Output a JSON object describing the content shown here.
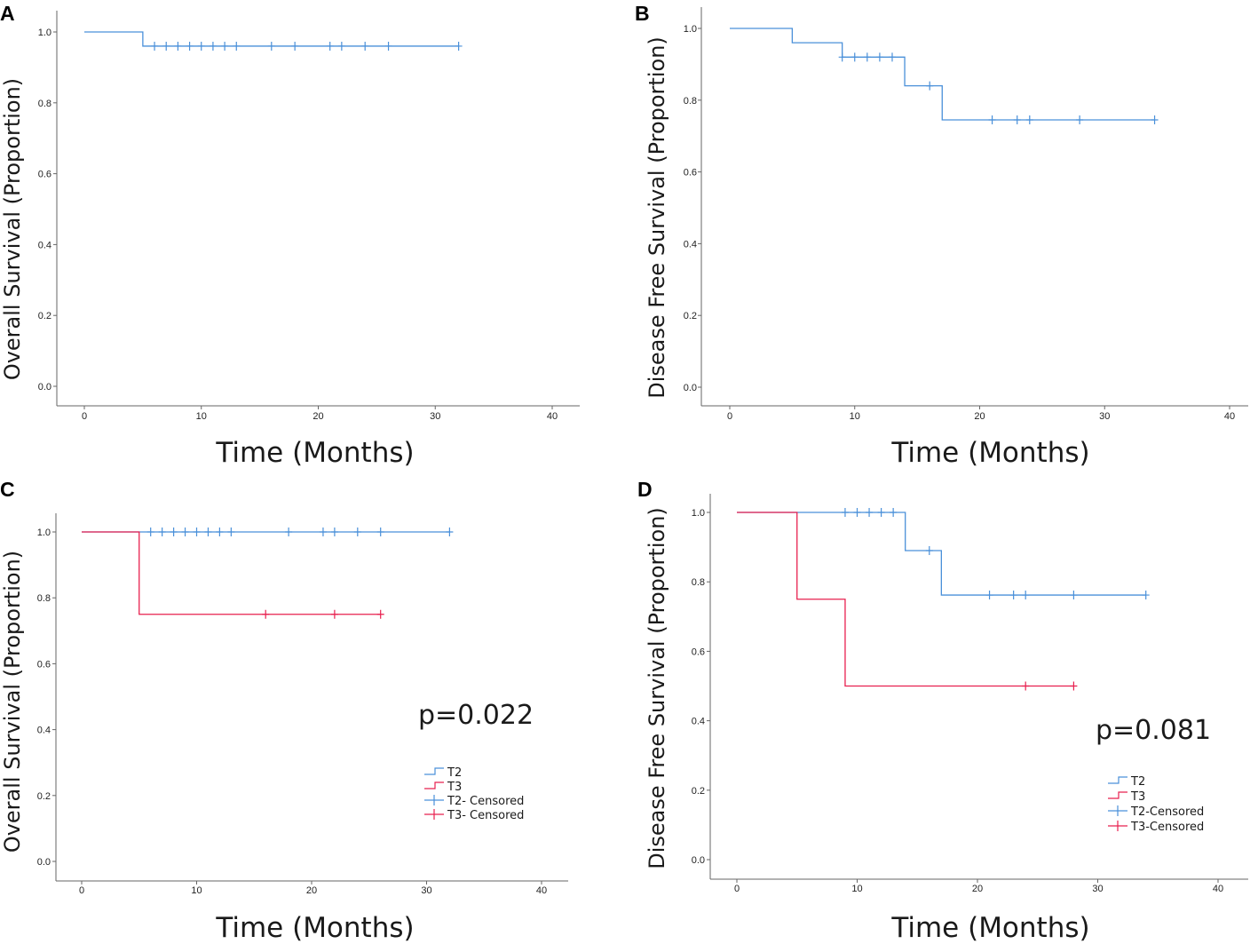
{
  "colors": {
    "T2": "#4a90d9",
    "T3": "#e8204f"
  },
  "chart_data": [
    {
      "panel": "A",
      "type": "line",
      "xlabel": "Time (Months)",
      "ylabel": "Overall Survival (Proportion)",
      "xlim": [
        0,
        40
      ],
      "ylim": [
        0,
        1.0
      ],
      "xticks": [
        0,
        10,
        20,
        30,
        40
      ],
      "yticks": [
        "0.0",
        "0.2",
        "0.4",
        "0.6",
        "0.8",
        "1.0"
      ],
      "series": [
        {
          "name": "T2",
          "color_key": "T2",
          "steps": [
            [
              0,
              1.0
            ],
            [
              5,
              0.96
            ],
            [
              32,
              0.96
            ]
          ],
          "censored": [
            6,
            7,
            8,
            9,
            10,
            11,
            12,
            13,
            16,
            18,
            21,
            22,
            24,
            26,
            32
          ],
          "censored_y": 0.96
        }
      ]
    },
    {
      "panel": "B",
      "type": "line",
      "xlabel": "Time (Months)",
      "ylabel": "Disease Free Survival (Proportion)",
      "xlim": [
        0,
        40
      ],
      "ylim": [
        0,
        1.0
      ],
      "xticks": [
        0,
        10,
        20,
        30,
        40
      ],
      "yticks": [
        "0.0",
        "0.2",
        "0.4",
        "0.6",
        "0.8",
        "1.0"
      ],
      "series": [
        {
          "name": "T2",
          "color_key": "T2",
          "steps": [
            [
              0,
              1.0
            ],
            [
              5,
              0.96
            ],
            [
              9,
              0.92
            ],
            [
              14,
              0.84
            ],
            [
              17,
              0.745
            ],
            [
              34,
              0.745
            ]
          ],
          "censored_points": [
            [
              9,
              0.92
            ],
            [
              10,
              0.92
            ],
            [
              11,
              0.92
            ],
            [
              12,
              0.92
            ],
            [
              13,
              0.92
            ],
            [
              16,
              0.84
            ],
            [
              21,
              0.745
            ],
            [
              23,
              0.745
            ],
            [
              24,
              0.745
            ],
            [
              28,
              0.745
            ],
            [
              34,
              0.745
            ]
          ]
        }
      ]
    },
    {
      "panel": "C",
      "type": "line",
      "xlabel": "Time (Months)",
      "ylabel": "Overall Survival (Proportion)",
      "xlim": [
        0,
        40
      ],
      "ylim": [
        0,
        1.0
      ],
      "xticks": [
        0,
        10,
        20,
        30,
        40
      ],
      "yticks": [
        "0.0",
        "0.2",
        "0.4",
        "0.6",
        "0.8",
        "1.0"
      ],
      "annotation": "p=0.022",
      "legend": [
        "T2",
        "T3",
        "T2- Censored",
        "T3- Censored"
      ],
      "series": [
        {
          "name": "T2",
          "color_key": "T2",
          "steps": [
            [
              0,
              1.0
            ],
            [
              32,
              1.0
            ]
          ],
          "censored_points": [
            [
              6,
              1.0
            ],
            [
              7,
              1.0
            ],
            [
              8,
              1.0
            ],
            [
              9,
              1.0
            ],
            [
              10,
              1.0
            ],
            [
              11,
              1.0
            ],
            [
              12,
              1.0
            ],
            [
              13,
              1.0
            ],
            [
              18,
              1.0
            ],
            [
              21,
              1.0
            ],
            [
              22,
              1.0
            ],
            [
              24,
              1.0
            ],
            [
              26,
              1.0
            ],
            [
              32,
              1.0
            ]
          ]
        },
        {
          "name": "T3",
          "color_key": "T3",
          "steps": [
            [
              0,
              1.0
            ],
            [
              5,
              0.75
            ],
            [
              26,
              0.75
            ]
          ],
          "censored_points": [
            [
              16,
              0.75
            ],
            [
              22,
              0.75
            ],
            [
              26,
              0.75
            ]
          ]
        }
      ]
    },
    {
      "panel": "D",
      "type": "line",
      "xlabel": "Time (Months)",
      "ylabel": "Disease Free Survival (Proportion)",
      "xlim": [
        0,
        40
      ],
      "ylim": [
        0,
        1.0
      ],
      "xticks": [
        0,
        10,
        20,
        30,
        40
      ],
      "yticks": [
        "0.0",
        "0.2",
        "0.4",
        "0.6",
        "0.8",
        "1.0"
      ],
      "annotation": "p=0.081",
      "legend": [
        "T2",
        "T3",
        "T2-Censored",
        "T3-Censored"
      ],
      "series": [
        {
          "name": "T2",
          "color_key": "T2",
          "steps": [
            [
              0,
              1.0
            ],
            [
              14,
              0.89
            ],
            [
              17,
              0.762
            ],
            [
              34,
              0.762
            ]
          ],
          "censored_points": [
            [
              9,
              1.0
            ],
            [
              10,
              1.0
            ],
            [
              11,
              1.0
            ],
            [
              12,
              1.0
            ],
            [
              13,
              1.0
            ],
            [
              16,
              0.89
            ],
            [
              21,
              0.762
            ],
            [
              23,
              0.762
            ],
            [
              24,
              0.762
            ],
            [
              28,
              0.762
            ],
            [
              34,
              0.762
            ]
          ]
        },
        {
          "name": "T3",
          "color_key": "T3",
          "steps": [
            [
              0,
              1.0
            ],
            [
              5,
              0.75
            ],
            [
              9,
              0.5
            ],
            [
              28,
              0.5
            ]
          ],
          "censored_points": [
            [
              24,
              0.5
            ],
            [
              28,
              0.5
            ]
          ]
        }
      ]
    }
  ]
}
